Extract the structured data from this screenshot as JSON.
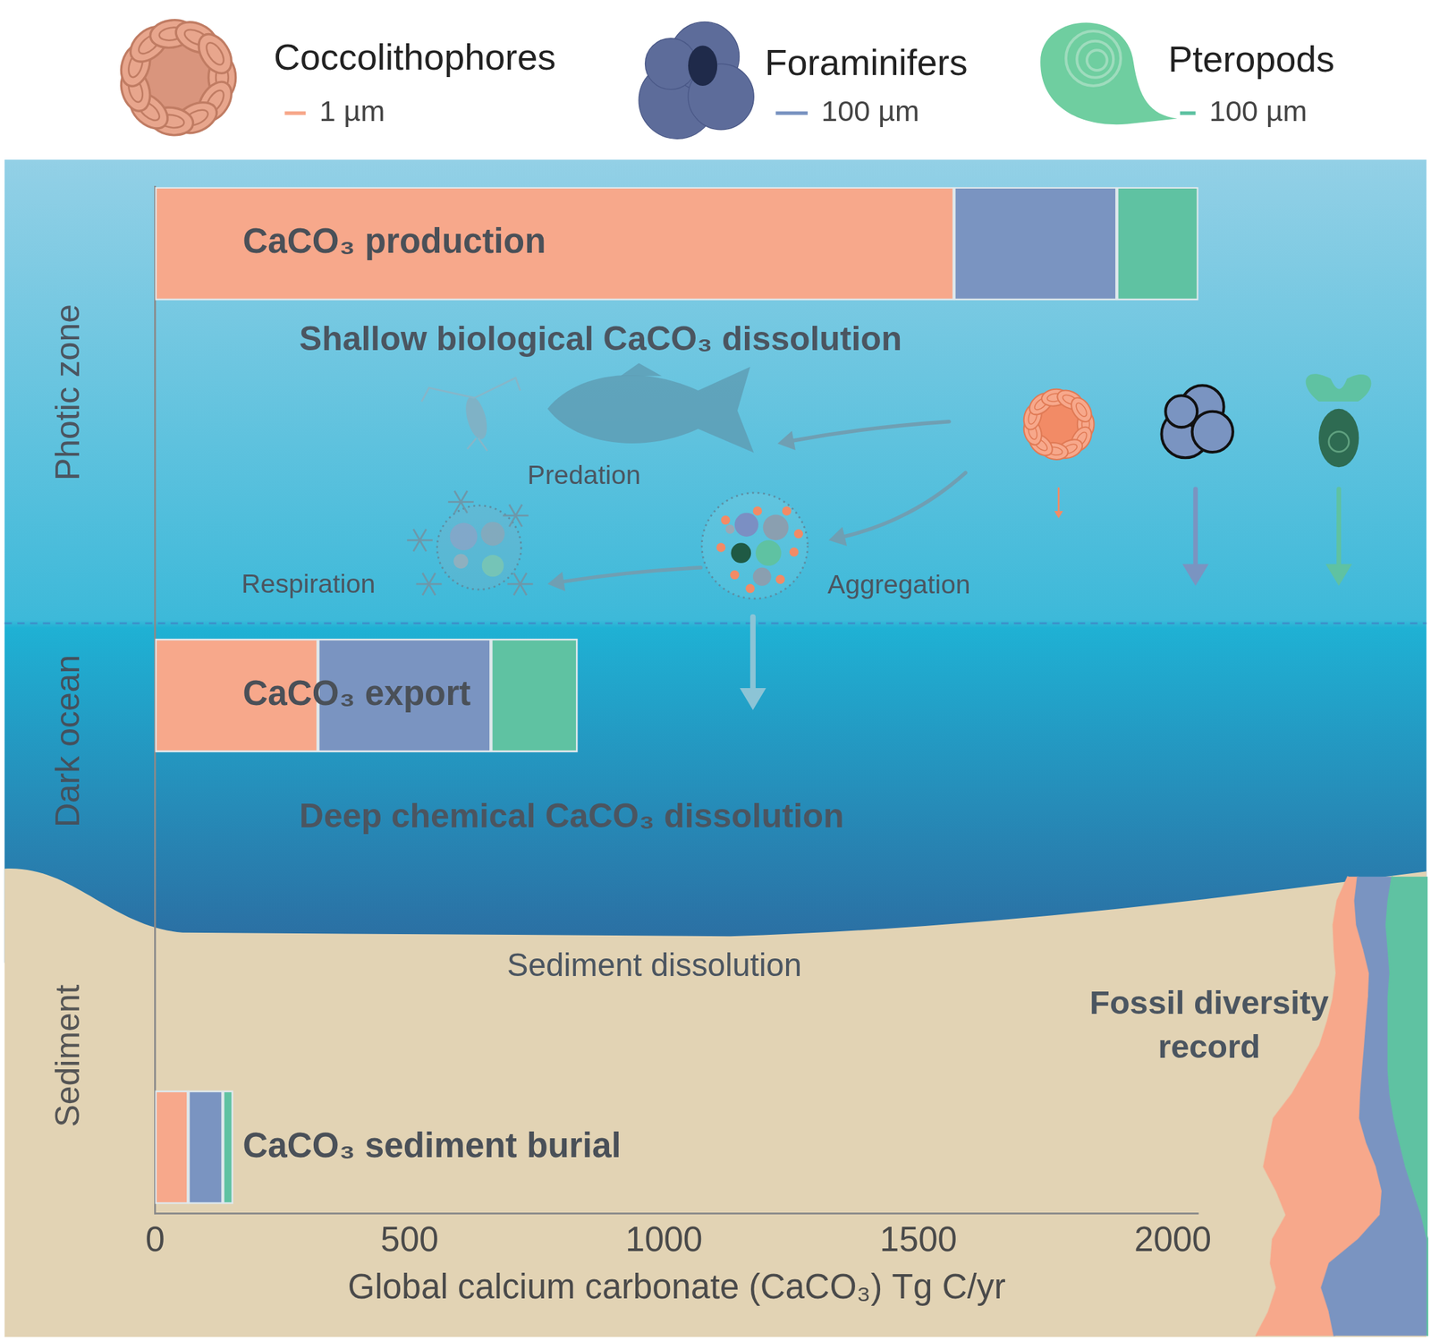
{
  "chart_data": [
    {
      "type": "bar",
      "orientation": "horizontal",
      "stacked": true,
      "grid": false,
      "tick_labels": "x",
      "legend": "top",
      "x_label": "Global calcium carbonate (CaCO₃) Tg C/yr",
      "categories": [
        "CaCO₃ production",
        "CaCO₃ export",
        "CaCO₃ sediment burial"
      ],
      "series": [
        {
          "name": "Coccolithophores",
          "color": "#f7a88b",
          "scale_bar": "1 µm",
          "values": [
            1570,
            320,
            65
          ]
        },
        {
          "name": "Foraminifers",
          "color": "#7a94c1",
          "scale_bar": "100 µm",
          "values": [
            320,
            340,
            68
          ]
        },
        {
          "name": "Pteropods",
          "color": "#5fc2a2",
          "scale_bar": "100 µm",
          "values": [
            160,
            170,
            20
          ]
        }
      ],
      "xlim": [
        0,
        2050
      ],
      "xticks": [
        0,
        500,
        1000,
        1500,
        2000
      ],
      "zones": [
        "Photic zone",
        "Dark ocean",
        "Sediment"
      ],
      "annotations": [
        "Shallow biological CaCO₃ dissolution",
        "Predation",
        "Aggregation",
        "Respiration",
        "Deep chemical CaCO₃ dissolution",
        "Sediment dissolution"
      ]
    },
    {
      "type": "area",
      "title": "Fossil diversity record",
      "stacked": true,
      "tick_labels": false,
      "categories": [
        null,
        null,
        null,
        null,
        null,
        null,
        null,
        null,
        null,
        null,
        null,
        null,
        null,
        null,
        null,
        null,
        null,
        null,
        null,
        null
      ],
      "series": [
        {
          "name": "Pteropods",
          "color": "#5fc2a2",
          "values": [
            0,
            0,
            0,
            0,
            0,
            6,
            14,
            22,
            28,
            34,
            38,
            40,
            40,
            40,
            40,
            38,
            40,
            42,
            40,
            36
          ]
        },
        {
          "name": "Foraminifers",
          "color": "#7a94c1",
          "values": [
            95,
            100,
            108,
            100,
            70,
            42,
            32,
            30,
            34,
            35,
            30,
            26,
            24,
            22,
            20,
            21,
            25,
            30,
            34,
            35
          ]
        },
        {
          "name": "Coccolithophores",
          "color": "#f7a88b",
          "values": [
            80,
            62,
            46,
            60,
            88,
            96,
            108,
            115,
            100,
            88,
            70,
            58,
            46,
            40,
            36,
            34,
            30,
            24,
            18,
            10
          ]
        }
      ]
    }
  ]
}
